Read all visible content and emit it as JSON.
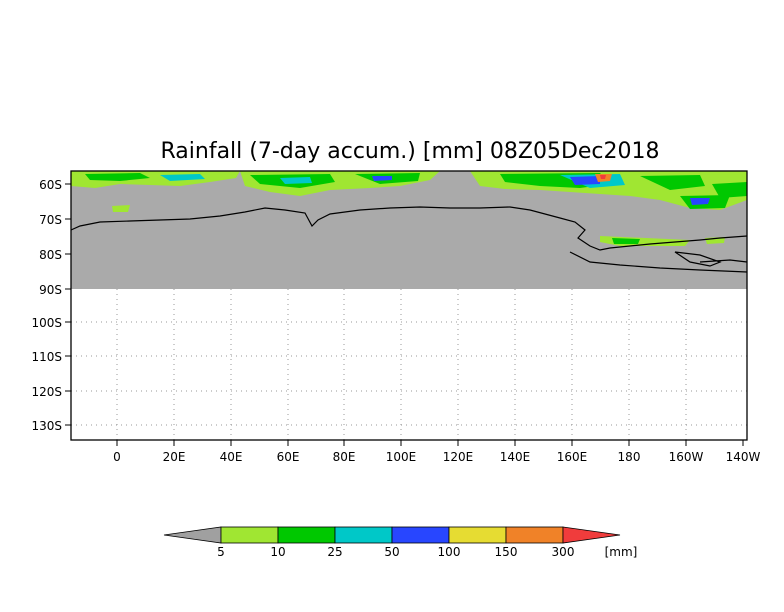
{
  "title": "Rainfall (7-day accum.) [mm] 08Z05Dec2018",
  "lat_labels": [
    "60S",
    "70S",
    "80S",
    "90S",
    "100S",
    "110S",
    "120S",
    "130S"
  ],
  "lon_labels": [
    "0",
    "20E",
    "40E",
    "60E",
    "80E",
    "100E",
    "120E",
    "140E",
    "160E",
    "180",
    "160W",
    "140W"
  ],
  "colorbar": {
    "ticks": [
      "5",
      "10",
      "25",
      "50",
      "100",
      "150",
      "300"
    ],
    "unit": "[mm]",
    "colors": [
      "#a0a0a0",
      "#a0e632",
      "#00c800",
      "#00c8c8",
      "#2846ff",
      "#e6dc32",
      "#f08228",
      "#f03c3c"
    ]
  },
  "colors": {
    "land_mask": "#aaaaaa",
    "grid": "#999999"
  }
}
